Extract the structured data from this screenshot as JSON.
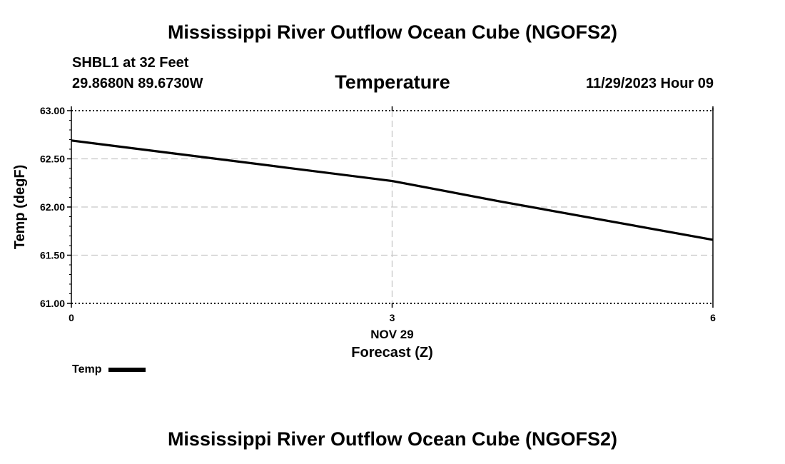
{
  "header": {
    "title": "Mississippi River Outflow Ocean Cube (NGOFS2)",
    "station": "SHBL1 at 32 Feet",
    "coordinates": "29.8680N  89.6730W",
    "subtitle": "Temperature",
    "datetime": "11/29/2023 Hour 09"
  },
  "footer": {
    "title": "Mississippi River Outflow Ocean Cube (NGOFS2)"
  },
  "chart_data": {
    "type": "line",
    "title": "Temperature",
    "xlabel": "Forecast (Z)",
    "xdate_label": "NOV 29",
    "ylabel": "Temp (degF)",
    "xlim": [
      0,
      6
    ],
    "ylim": [
      61.0,
      63.0
    ],
    "xticks": [
      0,
      3,
      6
    ],
    "xtick_labels": [
      "0",
      "3",
      "6"
    ],
    "yticks": [
      61.0,
      61.5,
      62.0,
      62.5,
      63.0
    ],
    "ytick_labels": [
      "61.00",
      "61.50",
      "62.00",
      "62.50",
      "63.00"
    ],
    "grid": true,
    "legend_position": "bottom-left",
    "series": [
      {
        "name": "Temp",
        "color": "#000000",
        "x": [
          0,
          1,
          2,
          3,
          4,
          5,
          6
        ],
        "y": [
          62.69,
          62.55,
          62.41,
          62.27,
          62.06,
          61.86,
          61.66
        ]
      }
    ]
  }
}
